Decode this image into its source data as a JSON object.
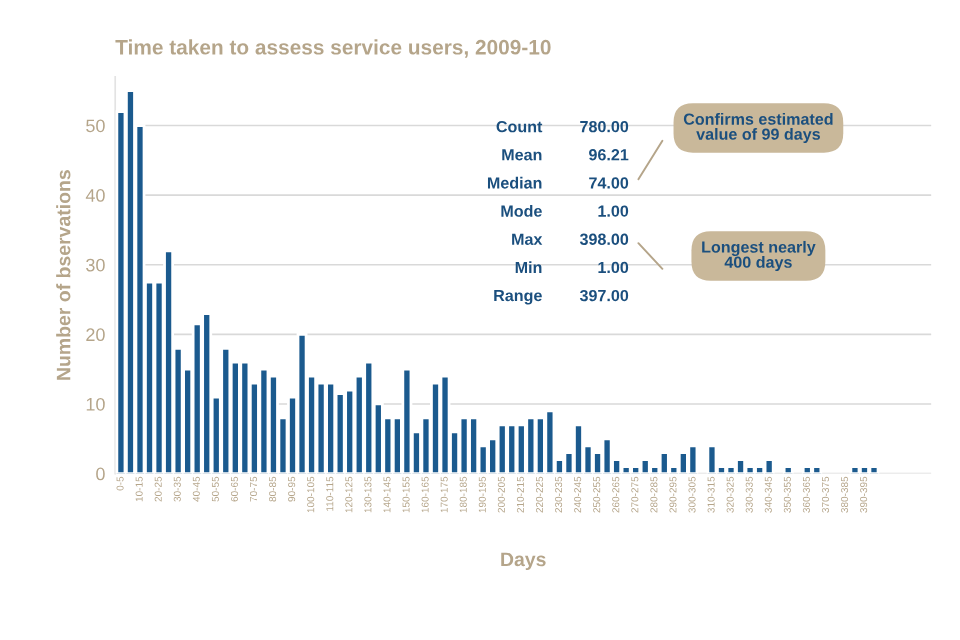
{
  "chart_data": {
    "type": "bar",
    "title": "Time taken to assess service users, 2009-10",
    "xlabel": "Days",
    "ylabel": "Number of bservations",
    "categories": [
      "0-5",
      null,
      "10-15",
      null,
      "20-25",
      null,
      "30-35",
      null,
      "40-45",
      null,
      "50-55",
      null,
      "60-65",
      null,
      "70-75",
      null,
      "80-85",
      null,
      "90-95",
      null,
      "100-105",
      null,
      "110-115",
      null,
      "120-125",
      null,
      "130-135",
      null,
      "140-145",
      null,
      "150-155",
      null,
      "160-165",
      null,
      "170-175",
      null,
      "180-185",
      null,
      "190-195",
      null,
      "200-205",
      null,
      "210-215",
      null,
      "220-225",
      null,
      "230-235",
      null,
      "240-245",
      null,
      "250-255",
      null,
      "260-265",
      null,
      "270-275",
      null,
      "280-285",
      null,
      "290-295",
      null,
      "300-305",
      null,
      "310-315",
      null,
      "320-325",
      null,
      "330-335",
      null,
      "340-345",
      null,
      "350-355",
      null,
      "360-365",
      null,
      "370-375",
      null,
      "380-385",
      null,
      "390-395",
      null
    ],
    "values": [
      52,
      55,
      50,
      27.5,
      27.5,
      32,
      18,
      15,
      21.5,
      23,
      11,
      18,
      16,
      16,
      13,
      15,
      14,
      8,
      11,
      20,
      14,
      13,
      13,
      11.5,
      12,
      14,
      16,
      10,
      8,
      8,
      15,
      6,
      8,
      13,
      14,
      6,
      8,
      8,
      4,
      5,
      7,
      7,
      7,
      8,
      8,
      9,
      2,
      3,
      7,
      4,
      3,
      5,
      2,
      1,
      1,
      2,
      1,
      3,
      1,
      3,
      4,
      null,
      4,
      1,
      1,
      2,
      1,
      1,
      2,
      null,
      1,
      null,
      1,
      1,
      null,
      null,
      null,
      1,
      1,
      1
    ],
    "color": "#1b5a8e",
    "ylim": [
      0,
      57
    ],
    "yticks": [
      0,
      10,
      20,
      30,
      40,
      50
    ],
    "grid": "y",
    "annotations": [
      "Count 780.00",
      "Mean 96.21",
      "Median 74.00",
      "Mode 1.00",
      "Max 398.00",
      "Min 1.00",
      "Range 397.00",
      "Confirms estimated\nvalue of 99 days",
      "Longest nearly\n400 days"
    ]
  }
}
